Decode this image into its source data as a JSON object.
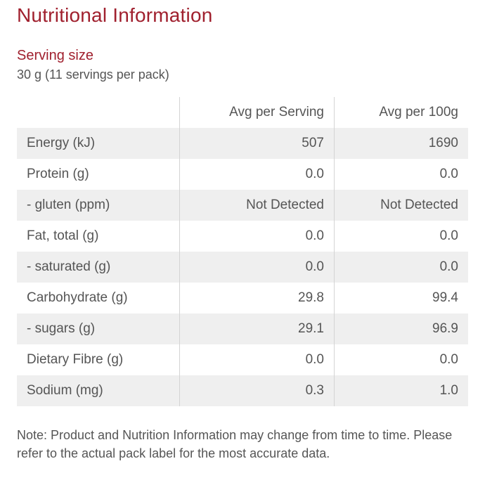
{
  "title": "Nutritional Information",
  "serving": {
    "heading": "Serving size",
    "text": "30 g (11 servings per pack)"
  },
  "table": {
    "headers": [
      "",
      "Avg per Serving",
      "Avg per 100g"
    ],
    "rows": [
      {
        "label": "Energy (kJ)",
        "serving": "507",
        "per100g": "1690"
      },
      {
        "label": "Protein (g)",
        "serving": "0.0",
        "per100g": "0.0"
      },
      {
        "label": "- gluten (ppm)",
        "serving": "Not Detected",
        "per100g": "Not Detected"
      },
      {
        "label": "Fat, total (g)",
        "serving": "0.0",
        "per100g": "0.0"
      },
      {
        "label": "- saturated (g)",
        "serving": "0.0",
        "per100g": "0.0"
      },
      {
        "label": "Carbohydrate (g)",
        "serving": "29.8",
        "per100g": "99.4"
      },
      {
        "label": "- sugars (g)",
        "serving": "29.1",
        "per100g": "96.9"
      },
      {
        "label": "Dietary Fibre (g)",
        "serving": "0.0",
        "per100g": "0.0"
      },
      {
        "label": "Sodium (mg)",
        "serving": "0.3",
        "per100g": "1.0"
      }
    ]
  },
  "note": "Note: Product and Nutrition Information may change from time to time. Please refer to the actual pack label for the most accurate data.",
  "colors": {
    "accent": "#a0202e",
    "text": "#555555",
    "row_shade": "#efefef",
    "divider": "#d4d4d4"
  }
}
